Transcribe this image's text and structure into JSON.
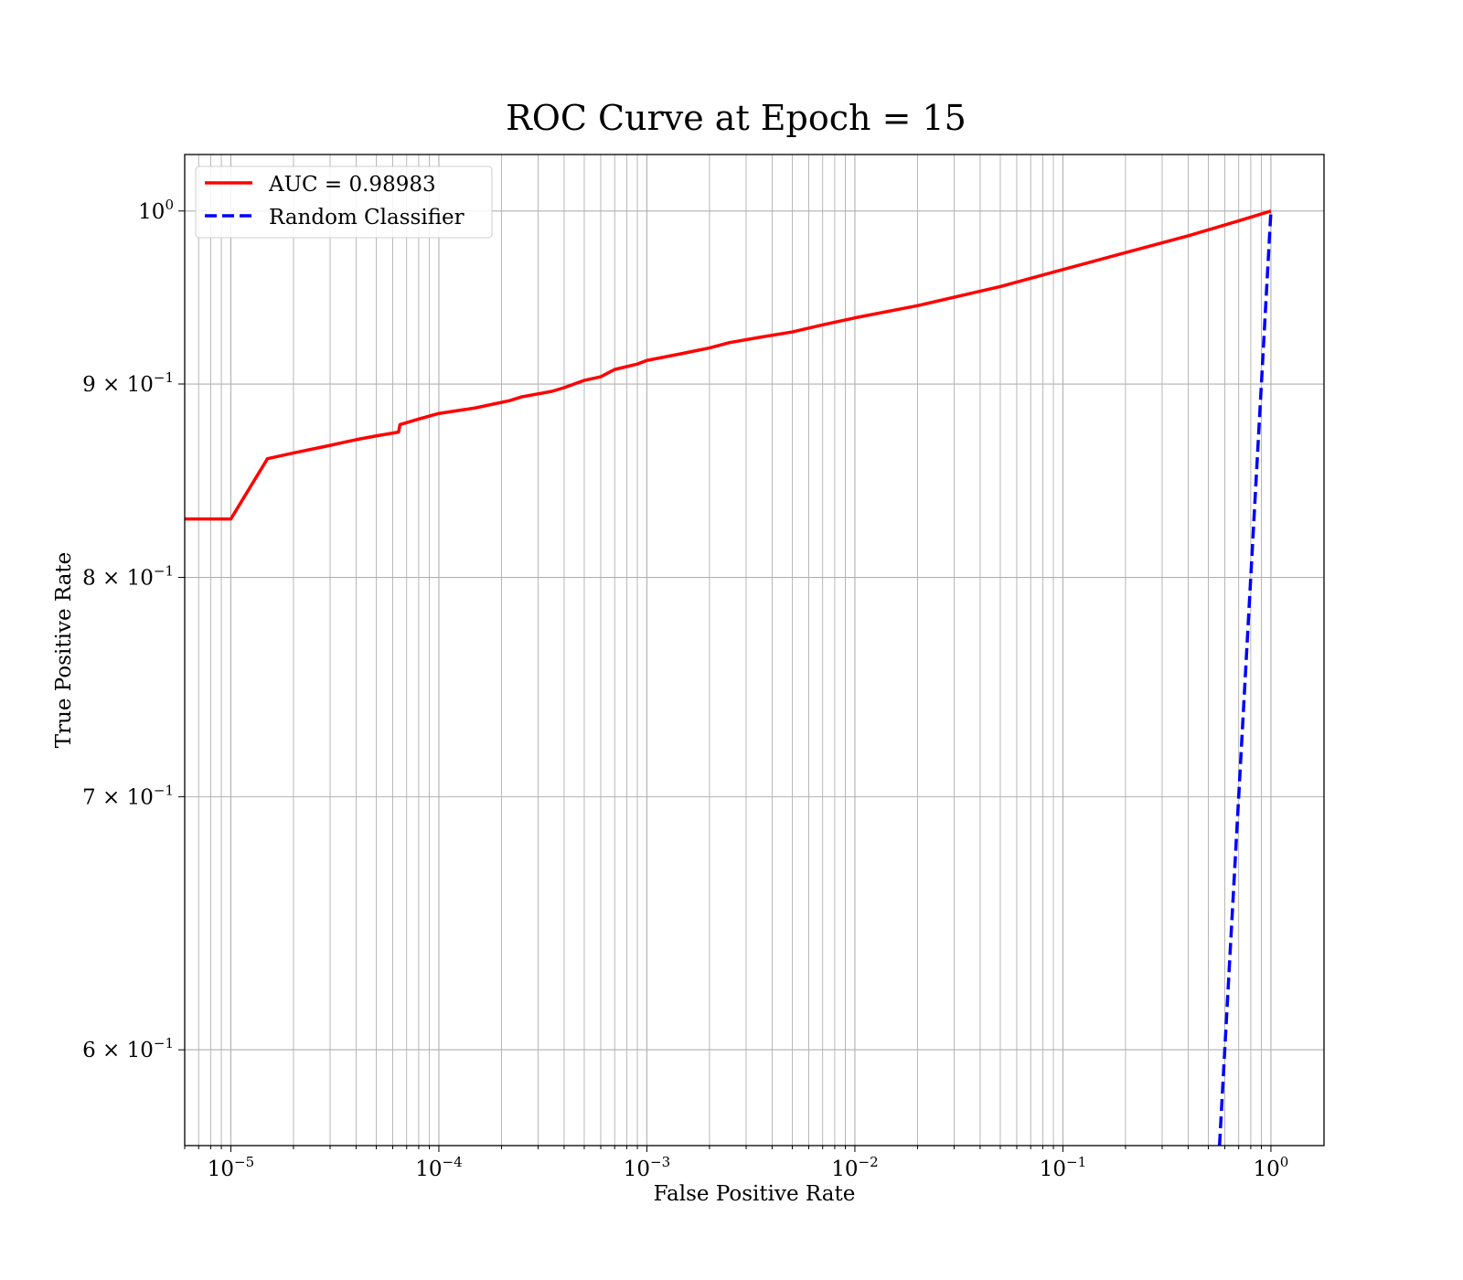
{
  "chart_data": {
    "type": "line",
    "title": "ROC Curve at Epoch = 15",
    "xlabel": "False Positive Rate",
    "ylabel": "True Positive Rate",
    "xscale": "log",
    "yscale": "log",
    "xlim": [
      6e-06,
      1.8
    ],
    "ylim": [
      0.566,
      1.035
    ],
    "grid": true,
    "legend": "upper-left",
    "x_ticks": [
      {
        "value": 1e-05,
        "base": "10",
        "exp": "−5"
      },
      {
        "value": 0.0001,
        "base": "10",
        "exp": "−4"
      },
      {
        "value": 0.001,
        "base": "10",
        "exp": "−3"
      },
      {
        "value": 0.01,
        "base": "10",
        "exp": "−2"
      },
      {
        "value": 0.1,
        "base": "10",
        "exp": "−1"
      },
      {
        "value": 1,
        "base": "10",
        "exp": "0"
      }
    ],
    "y_ticks": [
      {
        "value": 1.0,
        "base": "10",
        "exp": "0"
      },
      {
        "value": 0.9,
        "base": "9 × 10",
        "exp": "−1"
      },
      {
        "value": 0.8,
        "base": "8 × 10",
        "exp": "−1"
      },
      {
        "value": 0.7,
        "base": "7 × 10",
        "exp": "−1"
      },
      {
        "value": 0.6,
        "base": "6 × 10",
        "exp": "−1"
      }
    ],
    "series": [
      {
        "name": "AUC = 0.98983",
        "color": "#ff0000",
        "style": "solid",
        "points": [
          [
            6e-06,
            0.829
          ],
          [
            1e-05,
            0.829
          ],
          [
            1.5e-05,
            0.86
          ],
          [
            2e-05,
            0.863
          ],
          [
            3e-05,
            0.867
          ],
          [
            4e-05,
            0.87
          ],
          [
            5e-05,
            0.872
          ],
          [
            6.4e-05,
            0.874
          ],
          [
            6.5e-05,
            0.878
          ],
          [
            8e-05,
            0.881
          ],
          [
            0.0001,
            0.884
          ],
          [
            0.00015,
            0.887
          ],
          [
            0.00022,
            0.891
          ],
          [
            0.00025,
            0.893
          ],
          [
            0.00035,
            0.896
          ],
          [
            0.0004,
            0.898
          ],
          [
            0.0005,
            0.902
          ],
          [
            0.0006,
            0.904
          ],
          [
            0.0007,
            0.908
          ],
          [
            0.0009,
            0.911
          ],
          [
            0.001,
            0.913
          ],
          [
            0.0015,
            0.917
          ],
          [
            0.002,
            0.92
          ],
          [
            0.0025,
            0.923
          ],
          [
            0.0035,
            0.926
          ],
          [
            0.005,
            0.929
          ],
          [
            0.007,
            0.933
          ],
          [
            0.01,
            0.937
          ],
          [
            0.02,
            0.944
          ],
          [
            0.05,
            0.955
          ],
          [
            0.1,
            0.965
          ],
          [
            0.2,
            0.975
          ],
          [
            0.4,
            0.985
          ],
          [
            0.7,
            0.994
          ],
          [
            1.0,
            1.0
          ]
        ]
      },
      {
        "name": "Random Classifier",
        "color": "#0000ff",
        "style": "dashed",
        "points": [
          [
            0.566,
            0.566
          ],
          [
            0.6,
            0.6
          ],
          [
            0.7,
            0.7
          ],
          [
            0.8,
            0.8
          ],
          [
            0.9,
            0.9
          ],
          [
            1.0,
            1.0
          ]
        ]
      }
    ]
  }
}
